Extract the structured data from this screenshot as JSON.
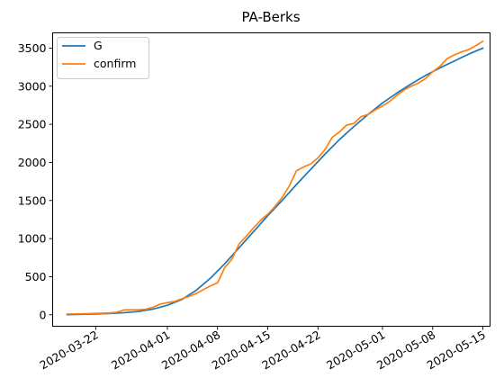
{
  "chart_data": {
    "type": "line",
    "title": "PA-Berks",
    "xlabel": "",
    "ylabel": "",
    "x_ticks": [
      "2020-03-22",
      "2020-04-01",
      "2020-04-08",
      "2020-04-15",
      "2020-04-22",
      "2020-05-01",
      "2020-05-08",
      "2020-05-15"
    ],
    "y_ticks": [
      0,
      500,
      1000,
      1500,
      2000,
      2500,
      3000,
      3500
    ],
    "xlim": [
      "2020-03-16",
      "2020-05-16"
    ],
    "ylim": [
      -150,
      3700
    ],
    "grid": false,
    "legend_position": "top-left",
    "series": [
      {
        "name": "G",
        "color": "#1f77b4",
        "points": [
          [
            "2020-03-18",
            2
          ],
          [
            "2020-03-20",
            6
          ],
          [
            "2020-03-22",
            11
          ],
          [
            "2020-03-24",
            18
          ],
          [
            "2020-03-26",
            28
          ],
          [
            "2020-03-28",
            45
          ],
          [
            "2020-03-30",
            75
          ],
          [
            "2020-04-01",
            125
          ],
          [
            "2020-04-03",
            200
          ],
          [
            "2020-04-05",
            320
          ],
          [
            "2020-04-07",
            480
          ],
          [
            "2020-04-09",
            670
          ],
          [
            "2020-04-11",
            880
          ],
          [
            "2020-04-13",
            1090
          ],
          [
            "2020-04-15",
            1300
          ],
          [
            "2020-04-17",
            1500
          ],
          [
            "2020-04-19",
            1710
          ],
          [
            "2020-04-21",
            1910
          ],
          [
            "2020-04-23",
            2110
          ],
          [
            "2020-04-25",
            2300
          ],
          [
            "2020-04-27",
            2470
          ],
          [
            "2020-04-29",
            2630
          ],
          [
            "2020-05-01",
            2780
          ],
          [
            "2020-05-03",
            2910
          ],
          [
            "2020-05-05",
            3030
          ],
          [
            "2020-05-07",
            3140
          ],
          [
            "2020-05-09",
            3240
          ],
          [
            "2020-05-11",
            3330
          ],
          [
            "2020-05-13",
            3420
          ],
          [
            "2020-05-15",
            3500
          ]
        ]
      },
      {
        "name": "confirm",
        "color": "#ff7f0e",
        "points": [
          [
            "2020-03-18",
            10
          ],
          [
            "2020-03-20",
            12
          ],
          [
            "2020-03-22",
            18
          ],
          [
            "2020-03-24",
            24
          ],
          [
            "2020-03-25",
            35
          ],
          [
            "2020-03-26",
            65
          ],
          [
            "2020-03-28",
            68
          ],
          [
            "2020-03-29",
            72
          ],
          [
            "2020-03-30",
            100
          ],
          [
            "2020-03-31",
            140
          ],
          [
            "2020-04-01",
            160
          ],
          [
            "2020-04-02",
            175
          ],
          [
            "2020-04-03",
            210
          ],
          [
            "2020-04-04",
            240
          ],
          [
            "2020-04-05",
            280
          ],
          [
            "2020-04-06",
            330
          ],
          [
            "2020-04-07",
            380
          ],
          [
            "2020-04-08",
            420
          ],
          [
            "2020-04-09",
            620
          ],
          [
            "2020-04-10",
            730
          ],
          [
            "2020-04-11",
            930
          ],
          [
            "2020-04-12",
            1030
          ],
          [
            "2020-04-13",
            1140
          ],
          [
            "2020-04-14",
            1240
          ],
          [
            "2020-04-15",
            1320
          ],
          [
            "2020-04-16",
            1420
          ],
          [
            "2020-04-17",
            1540
          ],
          [
            "2020-04-18",
            1690
          ],
          [
            "2020-04-19",
            1890
          ],
          [
            "2020-04-20",
            1940
          ],
          [
            "2020-04-21",
            1980
          ],
          [
            "2020-04-22",
            2060
          ],
          [
            "2020-04-23",
            2170
          ],
          [
            "2020-04-24",
            2330
          ],
          [
            "2020-04-25",
            2400
          ],
          [
            "2020-04-26",
            2490
          ],
          [
            "2020-04-27",
            2510
          ],
          [
            "2020-04-28",
            2600
          ],
          [
            "2020-04-29",
            2630
          ],
          [
            "2020-04-30",
            2690
          ],
          [
            "2020-05-01",
            2740
          ],
          [
            "2020-05-02",
            2800
          ],
          [
            "2020-05-03",
            2880
          ],
          [
            "2020-05-04",
            2950
          ],
          [
            "2020-05-05",
            3000
          ],
          [
            "2020-05-06",
            3040
          ],
          [
            "2020-05-07",
            3100
          ],
          [
            "2020-05-08",
            3190
          ],
          [
            "2020-05-09",
            3260
          ],
          [
            "2020-05-10",
            3360
          ],
          [
            "2020-05-11",
            3410
          ],
          [
            "2020-05-12",
            3450
          ],
          [
            "2020-05-13",
            3480
          ],
          [
            "2020-05-14",
            3530
          ],
          [
            "2020-05-15",
            3590
          ]
        ]
      }
    ]
  }
}
